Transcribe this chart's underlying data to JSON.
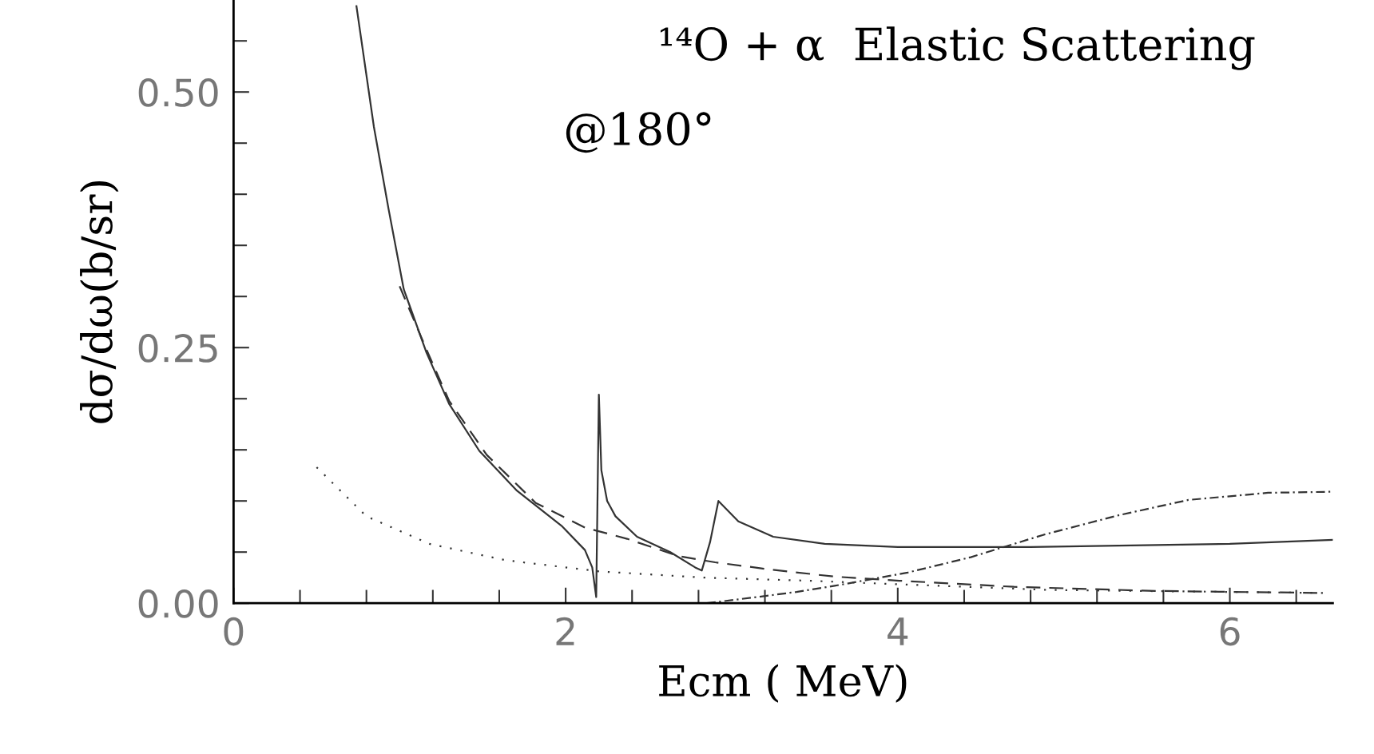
{
  "chart_data": {
    "type": "line",
    "xlabel": "Ecm ( MeV)",
    "ylabel": "dσ/dω(b/sr)",
    "annotations": [
      "¹⁴O + α  Elastic Scattering",
      "@180°"
    ],
    "xlim": [
      0,
      6.62
    ],
    "ylim": [
      0,
      0.59
    ],
    "xticks": [
      0,
      2,
      4,
      6
    ],
    "yticks": [
      {
        "value": 0,
        "label": "0.00"
      },
      {
        "value": 0.25,
        "label": "0.25"
      },
      {
        "value": 0.5,
        "label": "0.50"
      }
    ],
    "grid": false,
    "legend": false,
    "marker": "none",
    "series": [
      {
        "color": "#333333",
        "line_style": "solid",
        "x": [
          0.74,
          0.845,
          0.934,
          1.025,
          1.162,
          1.298,
          1.48,
          1.707,
          1.98,
          2.116,
          2.16,
          2.184,
          2.2,
          2.215,
          2.25,
          2.3,
          2.43,
          2.63,
          2.78,
          2.82,
          2.87,
          2.92,
          3.04,
          3.25,
          3.56,
          4.0,
          4.8,
          6.0,
          6.62
        ],
        "values": [
          0.584,
          0.466,
          0.385,
          0.307,
          0.245,
          0.195,
          0.149,
          0.11,
          0.075,
          0.052,
          0.035,
          0.006,
          0.204,
          0.13,
          0.1,
          0.085,
          0.065,
          0.05,
          0.035,
          0.032,
          0.06,
          0.1,
          0.08,
          0.065,
          0.058,
          0.055,
          0.055,
          0.058,
          0.062
        ]
      },
      {
        "color": "#333333",
        "line_style": "dashed",
        "x": [
          1.0,
          1.162,
          1.298,
          1.525,
          1.82,
          2.116,
          2.37,
          2.68,
          2.9,
          3.23,
          3.62,
          4.01,
          4.7,
          5.55,
          6.57
        ],
        "values": [
          0.31,
          0.248,
          0.198,
          0.145,
          0.098,
          0.074,
          0.063,
          0.046,
          0.04,
          0.033,
          0.026,
          0.022,
          0.016,
          0.012,
          0.01
        ]
      },
      {
        "color": "#333333",
        "line_style": "dotted",
        "x": [
          0.5,
          0.8,
          1.18,
          1.64,
          2.21,
          2.84,
          3.46,
          4.09,
          4.9,
          6.57
        ],
        "values": [
          0.133,
          0.085,
          0.058,
          0.042,
          0.031,
          0.025,
          0.022,
          0.018,
          0.013,
          0.01
        ]
      },
      {
        "color": "#333333",
        "line_style": "dashdot",
        "x": [
          2.85,
          3.15,
          3.39,
          3.62,
          4.06,
          4.44,
          4.88,
          5.33,
          5.75,
          6.23,
          6.61
        ],
        "values": [
          0.0,
          0.006,
          0.011,
          0.017,
          0.03,
          0.045,
          0.067,
          0.086,
          0.101,
          0.108,
          0.109
        ]
      }
    ]
  }
}
